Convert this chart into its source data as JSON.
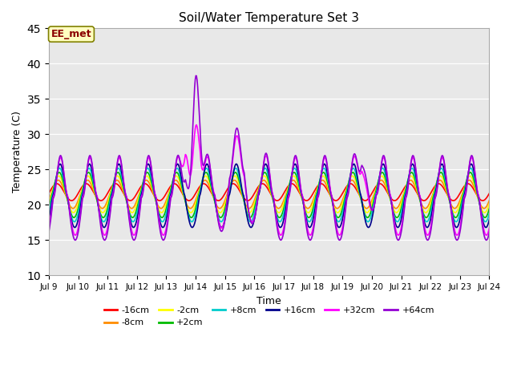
{
  "title": "Soil/Water Temperature Set 3",
  "xlabel": "Time",
  "ylabel": "Temperature (C)",
  "ylim": [
    10,
    45
  ],
  "yticks": [
    10,
    15,
    20,
    25,
    30,
    35,
    40,
    45
  ],
  "annotation_text": "EE_met",
  "annotation_color": "#8B0000",
  "annotation_bg": "#FFFFC0",
  "annotation_border": "#808000",
  "series": {
    "-16cm": {
      "color": "#FF0000",
      "lw": 1.2
    },
    "-8cm": {
      "color": "#FF8C00",
      "lw": 1.2
    },
    "-2cm": {
      "color": "#FFFF00",
      "lw": 1.2
    },
    "+2cm": {
      "color": "#00BB00",
      "lw": 1.2
    },
    "+8cm": {
      "color": "#00CCCC",
      "lw": 1.2
    },
    "+16cm": {
      "color": "#00008B",
      "lw": 1.2
    },
    "+32cm": {
      "color": "#FF00FF",
      "lw": 1.2
    },
    "+64cm": {
      "color": "#9400D3",
      "lw": 1.2
    }
  },
  "legend_order": [
    "-16cm",
    "-8cm",
    "-2cm",
    "+2cm",
    "+8cm",
    "+16cm",
    "+32cm",
    "+64cm"
  ],
  "plot_bg": "#E8E8E8",
  "fig_bg": "#FFFFFF"
}
